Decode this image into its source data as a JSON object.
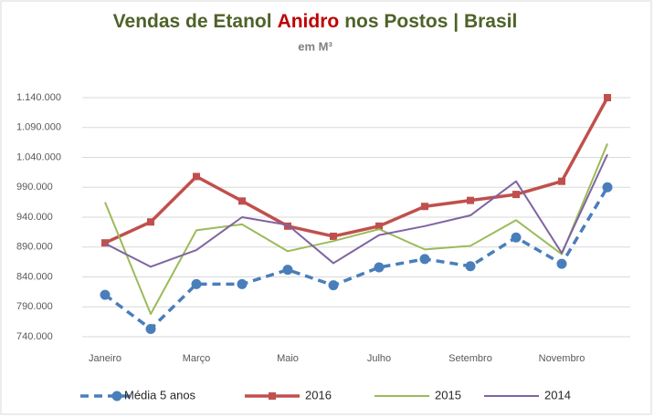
{
  "chart_data": {
    "type": "line",
    "title_parts": [
      {
        "text": "Vendas de Etanol",
        "color": "#4f6228"
      },
      {
        "text": "Anidro",
        "color": "#c00000"
      },
      {
        "text": "nos Postos | Brasil",
        "color": "#4f6228"
      }
    ],
    "subtitle": "em M³",
    "categories": [
      "Janeiro",
      null,
      "Março",
      null,
      "Maio",
      null,
      "Julho",
      null,
      "Setembro",
      null,
      "Novembro",
      null
    ],
    "ylim": [
      740000,
      1140000
    ],
    "yticks": [
      {
        "value": 740000,
        "label": "740.000"
      },
      {
        "value": 790000,
        "label": "790.000"
      },
      {
        "value": 840000,
        "label": "840.000"
      },
      {
        "value": 890000,
        "label": "890.000"
      },
      {
        "value": 940000,
        "label": "940.000"
      },
      {
        "value": 990000,
        "label": "990.000"
      },
      {
        "value": 1040000,
        "label": "1.040.000"
      },
      {
        "value": 1090000,
        "label": "1.090.000"
      },
      {
        "value": 1140000,
        "label": "1.140.000"
      }
    ],
    "grid": true,
    "legend": "bottom",
    "series": [
      {
        "name": "Média 5 anos",
        "color": "#4a7ebb",
        "dash": true,
        "marker": "circle",
        "values": [
          810000,
          753000,
          828000,
          828000,
          852000,
          826000,
          856000,
          870000,
          858000,
          906000,
          862000,
          990000
        ]
      },
      {
        "name": "2016",
        "color": "#c0504d",
        "dash": false,
        "marker": "square",
        "values": [
          897000,
          932000,
          1008000,
          967000,
          925000,
          908000,
          925000,
          958000,
          968000,
          978000,
          1000000,
          1140000
        ]
      },
      {
        "name": "2015",
        "color": "#9bbb59",
        "dash": false,
        "marker": null,
        "values": [
          965000,
          778000,
          918000,
          928000,
          883000,
          900000,
          920000,
          886000,
          892000,
          935000,
          878000,
          1063000
        ]
      },
      {
        "name": "2014",
        "color": "#8064a2",
        "dash": false,
        "marker": null,
        "values": [
          896000,
          857000,
          885000,
          940000,
          927000,
          863000,
          910000,
          925000,
          943000,
          1000000,
          880000,
          1045000
        ]
      }
    ]
  }
}
